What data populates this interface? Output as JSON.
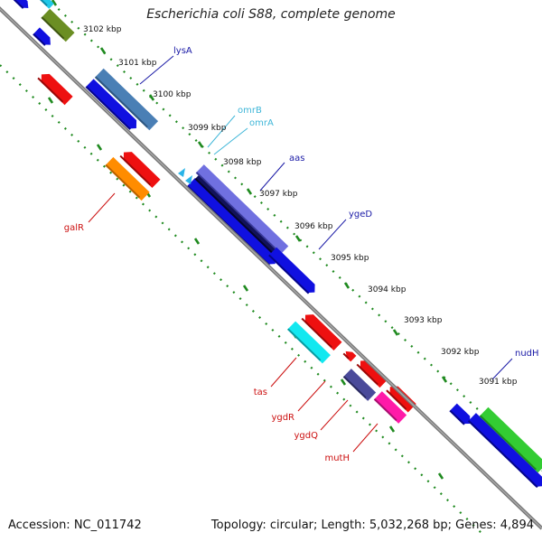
{
  "title": "Escherichia coli S88, complete genome",
  "footer": {
    "accession": "Accession: NC_011742",
    "topology": "Topology: circular; Length: 5,032,268 bp; Genes: 4,894"
  },
  "colors": {
    "backbone": "#8c8c8c",
    "tick_dash": "#1f8a1f",
    "label_top": "#1a1aa6",
    "label_top_light": "#3fb6d8",
    "label_bottom": "#cc1111"
  },
  "scale_ticks": [
    "3102 kbp",
    "3101 kbp",
    "3100 kbp",
    "3099 kbp",
    "3098 kbp",
    "3097 kbp",
    "3096 kbp",
    "3095 kbp",
    "3094 kbp",
    "3093 kbp",
    "3092 kbp",
    "3091 kbp"
  ],
  "gene_labels": [
    {
      "name": "lysA",
      "color": "#1a1aa6"
    },
    {
      "name": "omrB",
      "color": "#3fb6d8"
    },
    {
      "name": "omrA",
      "color": "#3fb6d8"
    },
    {
      "name": "aas",
      "color": "#1a1aa6"
    },
    {
      "name": "ygeD",
      "color": "#1a1aa6"
    },
    {
      "name": "nudH",
      "color": "#1a1aa6"
    },
    {
      "name": "galR",
      "color": "#cc1111"
    },
    {
      "name": "tas",
      "color": "#cc1111"
    },
    {
      "name": "ygdR",
      "color": "#cc1111"
    },
    {
      "name": "ygdQ",
      "color": "#cc1111"
    },
    {
      "name": "mutH",
      "color": "#cc1111"
    }
  ]
}
